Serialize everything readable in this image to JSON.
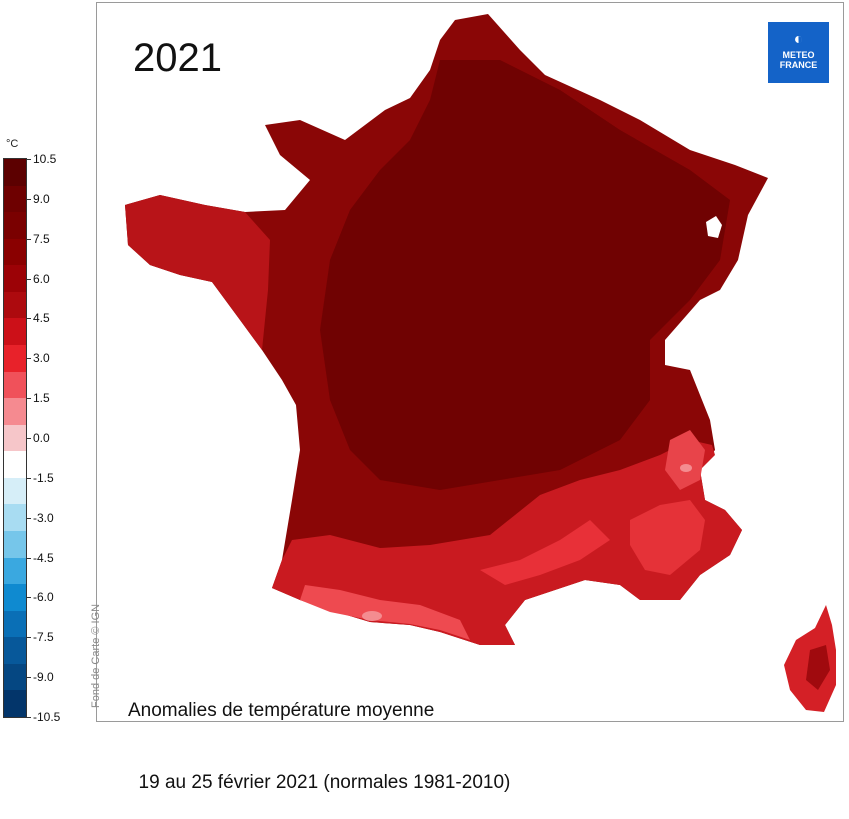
{
  "title": "2021",
  "logo": {
    "line1": "METEO",
    "line2": "FRANCE",
    "brand_color": "#1463c8"
  },
  "legend": {
    "unit": "°C",
    "ticks": [
      "10.5",
      "9.0",
      "7.5",
      "6.0",
      "4.5",
      "3.0",
      "1.5",
      "0.0",
      "-1.5",
      "-3.0",
      "-4.5",
      "-6.0",
      "-7.5",
      "-9.0",
      "-10.5"
    ],
    "bin_colors": [
      "#5c0000",
      "#6e0000",
      "#7a0000",
      "#8a0000",
      "#9c0206",
      "#ad0a0e",
      "#cc1018",
      "#e8222a",
      "#f0515a",
      "#f58a90",
      "#f6c6c9",
      "#ffffff",
      "#d6eef8",
      "#a8dcf2",
      "#76c6ea",
      "#3aa8e0",
      "#0f8ad0",
      "#0a6fb6",
      "#07589a",
      "#054782",
      "#03356a"
    ]
  },
  "map": {
    "anomaly_colors": {
      "core": "#730202",
      "mid": "#900a0a",
      "south": "#b81818",
      "warm": "#d82a30",
      "hot": "#ee4a50",
      "pale": "#f48c90"
    },
    "frame_color": "#9a9a9a"
  },
  "credit": "Fond de Carte © IGN",
  "caption": {
    "line1": "Anomalies de température moyenne",
    "line2": "  19 au 25 février 2021 (normales 1981-2010)"
  }
}
